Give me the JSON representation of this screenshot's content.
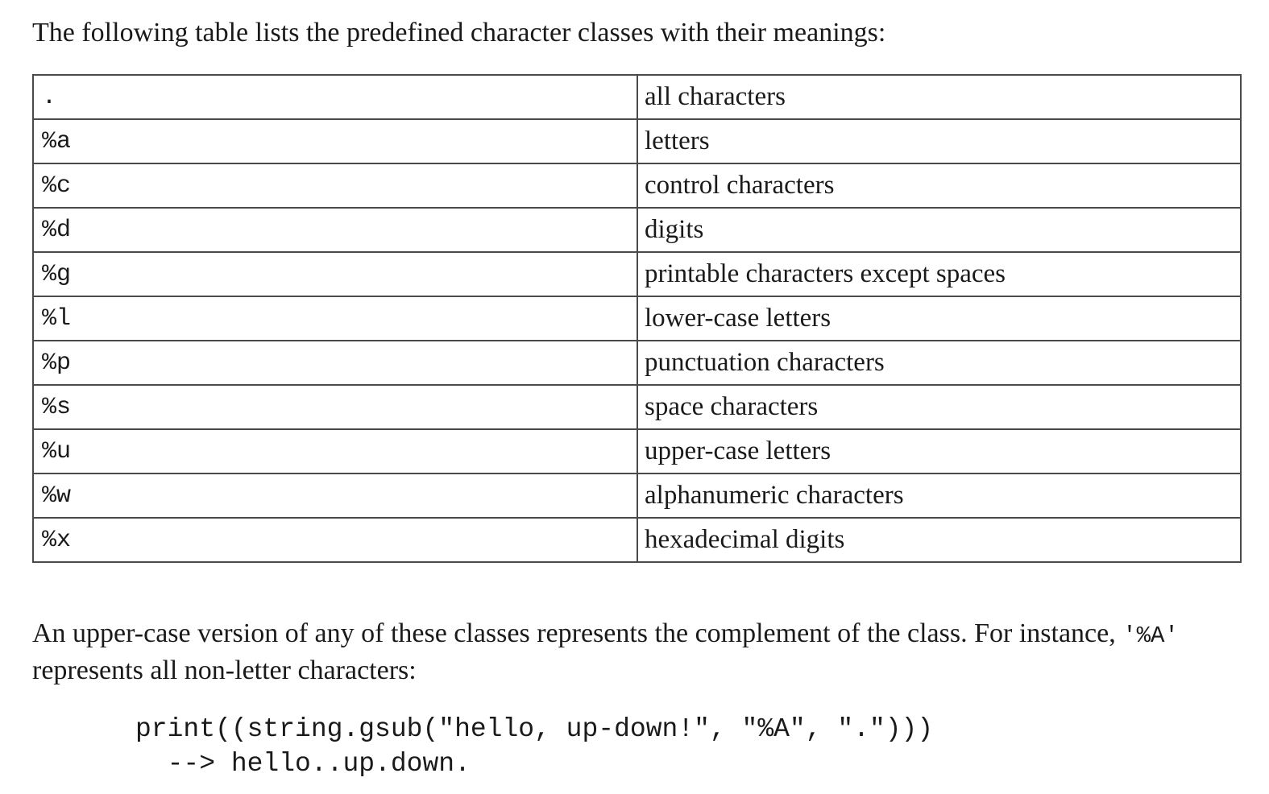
{
  "intro": "The following table lists the predefined character classes with their meanings:",
  "table": {
    "rows": [
      {
        "cls": ".",
        "meaning": "all characters"
      },
      {
        "cls": "%a",
        "meaning": "letters"
      },
      {
        "cls": "%c",
        "meaning": "control characters"
      },
      {
        "cls": "%d",
        "meaning": "digits"
      },
      {
        "cls": "%g",
        "meaning": "printable characters except spaces"
      },
      {
        "cls": "%l",
        "meaning": "lower-case letters"
      },
      {
        "cls": "%p",
        "meaning": "punctuation characters"
      },
      {
        "cls": "%s",
        "meaning": "space characters"
      },
      {
        "cls": "%u",
        "meaning": "upper-case letters"
      },
      {
        "cls": "%w",
        "meaning": "alphanumeric characters"
      },
      {
        "cls": "%x",
        "meaning": "hexadecimal digits"
      }
    ]
  },
  "paragraph": {
    "before": "An upper-case version of any of these classes represents the complement of the class. For instance, ",
    "code": "'%A'",
    "after": " represents all non-letter characters:"
  },
  "code": {
    "line1": "print((string.gsub(\"hello, up-down!\", \"%A\", \".\")))",
    "line2": "  --> hello..up.down."
  }
}
